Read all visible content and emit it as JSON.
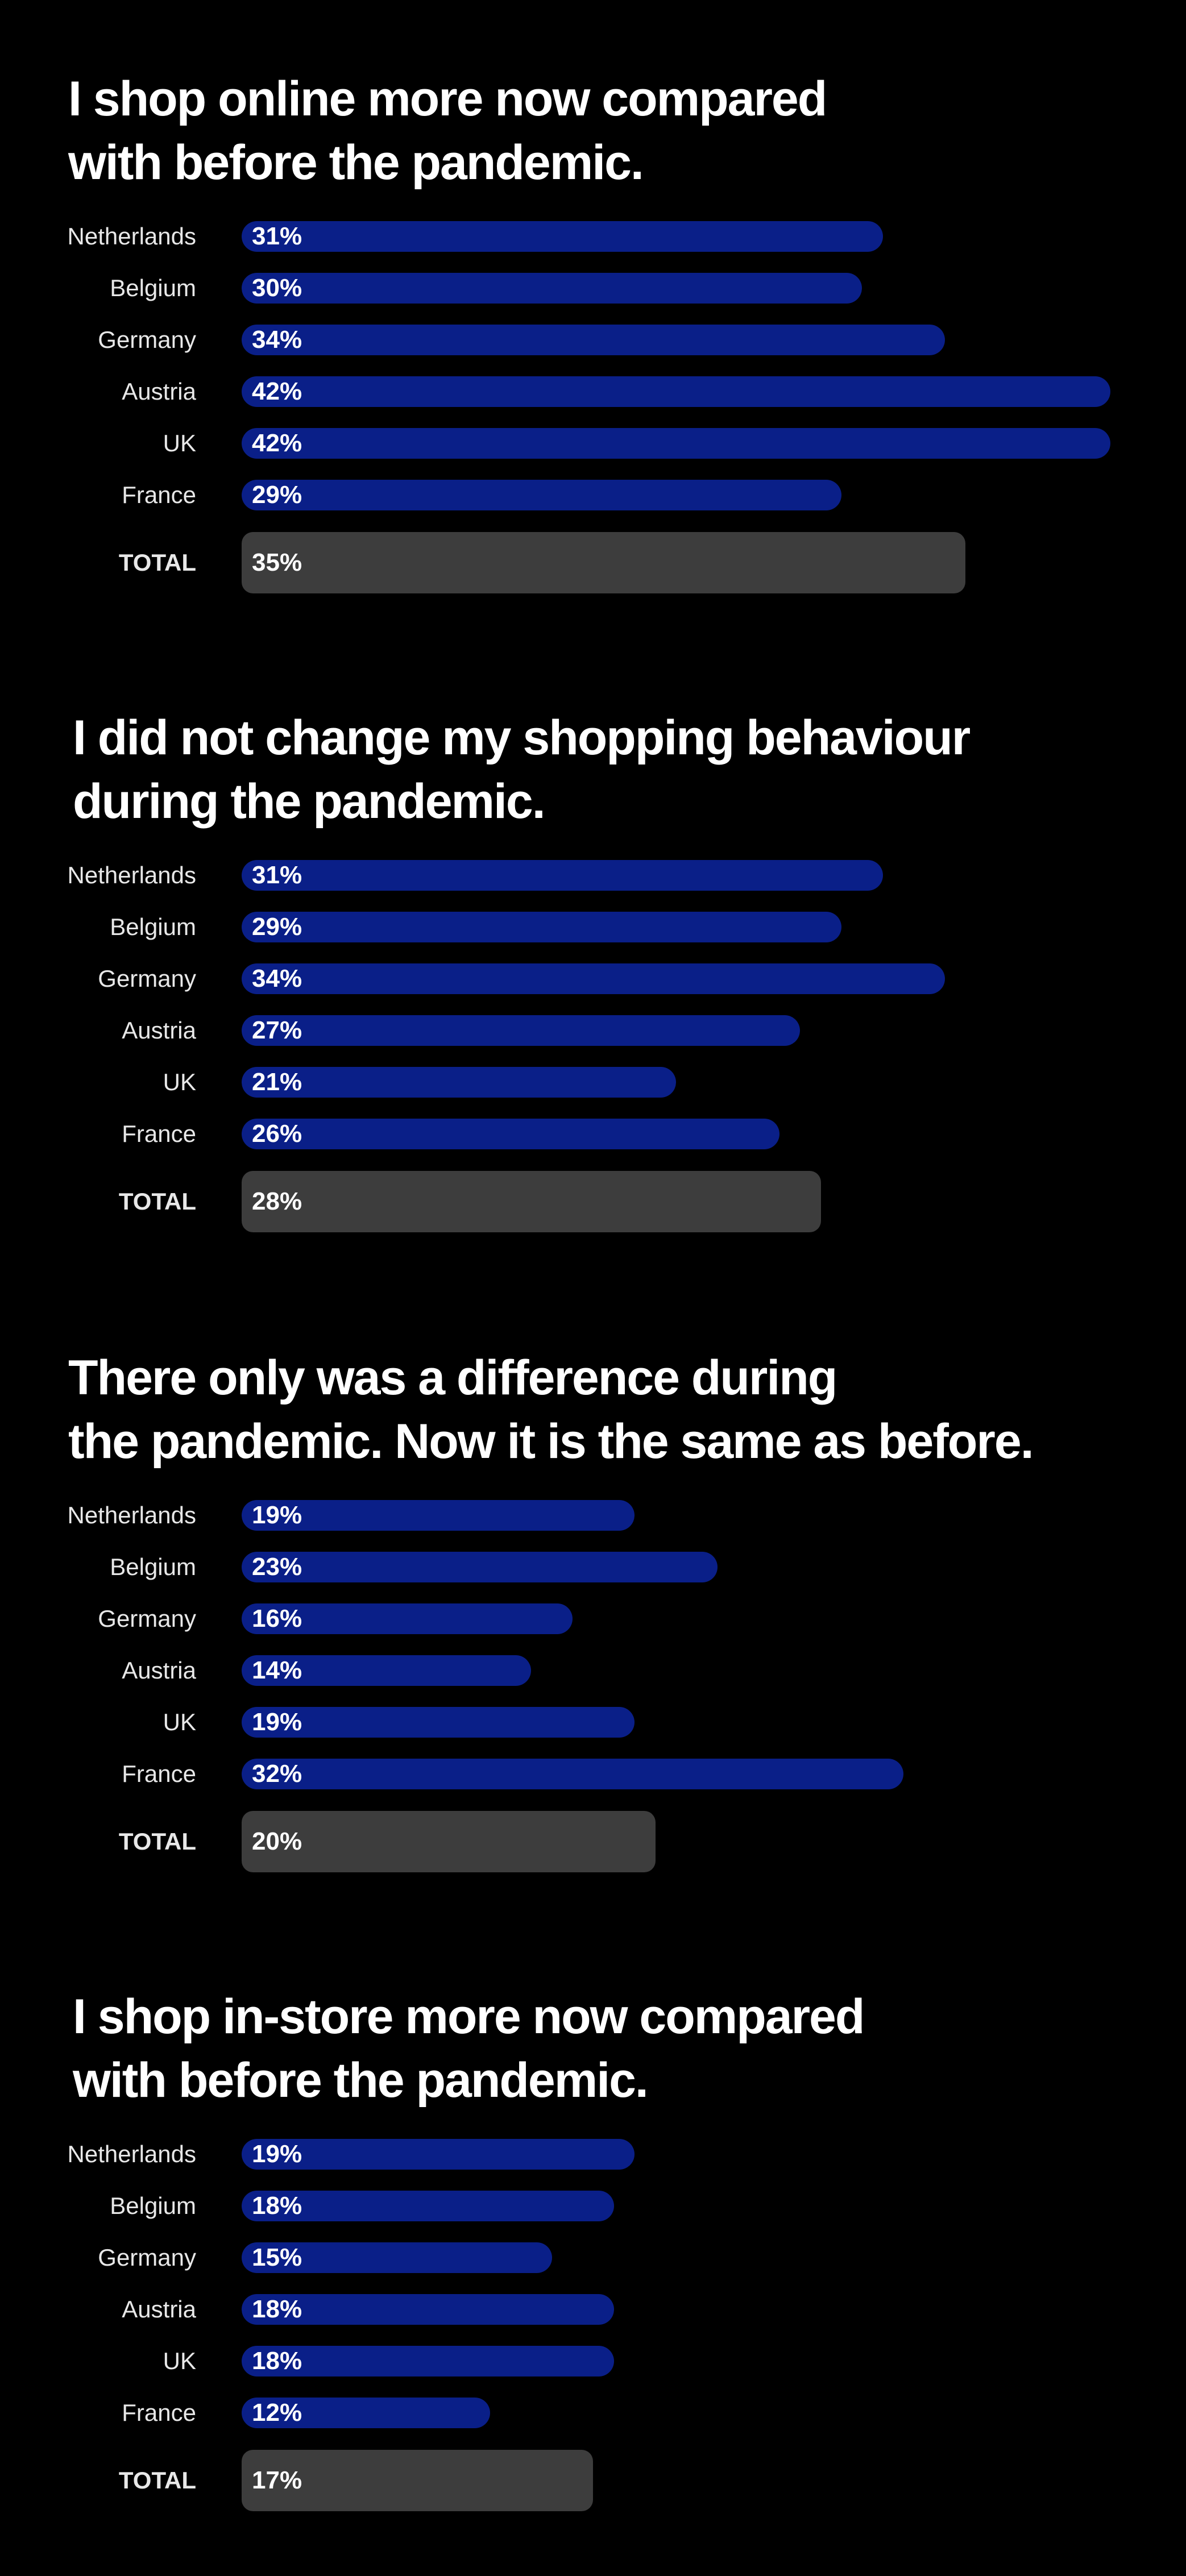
{
  "colors": {
    "background": "#000000",
    "country_bar": "#0a1f88",
    "total_bar": "#3d3d3d",
    "text": "#ffffff"
  },
  "chart_data": [
    {
      "type": "bar",
      "orientation": "horizontal",
      "title": "I shop online more now compared with before the pandemic.",
      "title_lines": [
        "I shop online more now compared",
        "with before the pandemic."
      ],
      "categories": [
        "Netherlands",
        "Belgium",
        "Germany",
        "Austria",
        "UK",
        "France",
        "TOTAL"
      ],
      "values": [
        31,
        30,
        34,
        42,
        42,
        29,
        35
      ],
      "labels": [
        "31%",
        "30%",
        "34%",
        "42%",
        "42%",
        "29%",
        "35%"
      ],
      "xlim": [
        0,
        42
      ],
      "grid": false
    },
    {
      "type": "bar",
      "orientation": "horizontal",
      "title": "I did not change my shopping behaviour during the pandemic.",
      "title_lines": [
        "I did not change my shopping behaviour",
        "during the pandemic."
      ],
      "categories": [
        "Netherlands",
        "Belgium",
        "Germany",
        "Austria",
        "UK",
        "France",
        "TOTAL"
      ],
      "values": [
        31,
        29,
        34,
        27,
        21,
        26,
        28
      ],
      "labels": [
        "31%",
        "29%",
        "34%",
        "27%",
        "21%",
        "26%",
        "28%"
      ],
      "xlim": [
        0,
        42
      ],
      "grid": false
    },
    {
      "type": "bar",
      "orientation": "horizontal",
      "title": "There only was a difference during the pandemic. Now it is the same as before.",
      "title_lines": [
        "There only was a difference during",
        "the pandemic. Now it is the same as before."
      ],
      "categories": [
        "Netherlands",
        "Belgium",
        "Germany",
        "Austria",
        "UK",
        "France",
        "TOTAL"
      ],
      "values": [
        19,
        23,
        16,
        14,
        19,
        32,
        20
      ],
      "labels": [
        "19%",
        "23%",
        "16%",
        "14%",
        "19%",
        "32%",
        "20%"
      ],
      "xlim": [
        0,
        42
      ],
      "grid": false
    },
    {
      "type": "bar",
      "orientation": "horizontal",
      "title": "I shop in-store more now compared with before the pandemic.",
      "title_lines": [
        "I shop in-store more now compared",
        "with before the pandemic."
      ],
      "categories": [
        "Netherlands",
        "Belgium",
        "Germany",
        "Austria",
        "UK",
        "France",
        "TOTAL"
      ],
      "values": [
        19,
        18,
        15,
        18,
        18,
        12,
        17
      ],
      "labels": [
        "19%",
        "18%",
        "15%",
        "18%",
        "18%",
        "12%",
        "17%"
      ],
      "xlim": [
        0,
        42
      ],
      "grid": false
    }
  ]
}
